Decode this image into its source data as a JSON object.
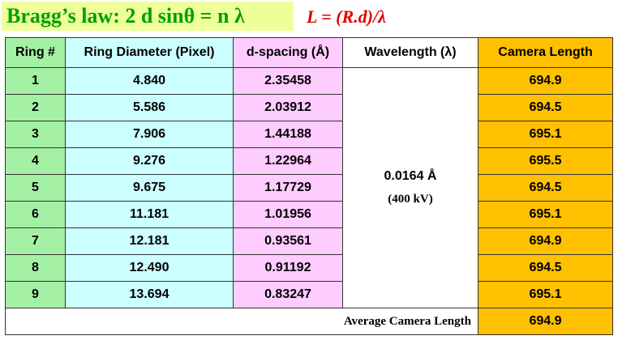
{
  "title": "Bragg’s law: 2 d sinθ = n λ",
  "formula": "L = (R.d)/λ",
  "table": {
    "headers": [
      "Ring #",
      "Ring Diameter (Pixel)",
      "d-spacing (Å)",
      "Wavelength (λ)",
      "Camera Length"
    ],
    "rows": [
      [
        "1",
        "4.840",
        "2.35458",
        "694.9"
      ],
      [
        "2",
        "5.586",
        "2.03912",
        "694.5"
      ],
      [
        "3",
        "7.906",
        "1.44188",
        "695.1"
      ],
      [
        "4",
        "9.276",
        "1.22964",
        "695.5"
      ],
      [
        "5",
        "9.675",
        "1.17729",
        "694.5"
      ],
      [
        "6",
        "11.181",
        "1.01956",
        "695.1"
      ],
      [
        "7",
        "12.181",
        "0.93561",
        "694.9"
      ],
      [
        "8",
        "12.490",
        "0.91192",
        "694.5"
      ],
      [
        "9",
        "13.694",
        "0.83247",
        "695.1"
      ]
    ],
    "wavelength": "0.0164 Å",
    "voltage": "(400 kV)",
    "average_label": "Average Camera Length",
    "average_value": "694.9"
  }
}
